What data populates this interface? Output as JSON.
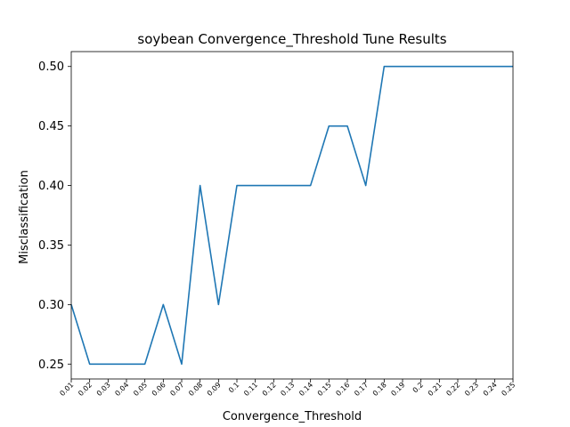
{
  "chart_data": {
    "type": "line",
    "title": "soybean Convergence_Threshold Tune Results",
    "xlabel": "Convergence_Threshold",
    "ylabel": "Misclassification",
    "categories": [
      "0.01",
      "0.02",
      "0.03",
      "0.04",
      "0.05",
      "0.06",
      "0.07",
      "0.08",
      "0.09",
      "0.1",
      "0.11",
      "0.12",
      "0.13",
      "0.14",
      "0.15",
      "0.16",
      "0.17",
      "0.18",
      "0.19",
      "0.2",
      "0.21",
      "0.22",
      "0.23",
      "0.24",
      "0.25"
    ],
    "series": [
      {
        "values": [
          0.3,
          0.25,
          0.25,
          0.25,
          0.25,
          0.3,
          0.25,
          0.4,
          0.3,
          0.4,
          0.4,
          0.4,
          0.4,
          0.4,
          0.45,
          0.45,
          0.4,
          0.5,
          0.5,
          0.5,
          0.5,
          0.5,
          0.5,
          0.5,
          0.5
        ],
        "color": "#1f77b4"
      }
    ],
    "ylim": [
      0.2375,
      0.5125
    ],
    "yticks": [
      "0.25",
      "0.30",
      "0.35",
      "0.40",
      "0.45",
      "0.50"
    ],
    "grid": false,
    "legend": "none"
  }
}
